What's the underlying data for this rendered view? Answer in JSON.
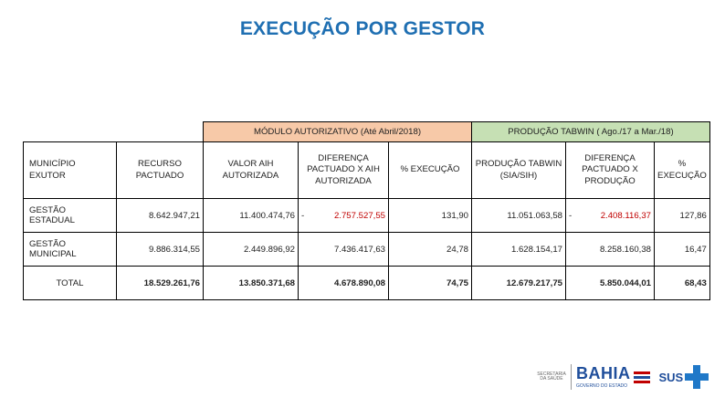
{
  "title": "EXECUÇÃO POR GESTOR",
  "group_headers": {
    "modulo": "MÓDULO AUTORIZATIVO (Até Abril/2018)",
    "producao": "PRODUÇÃO TABWIN ( Ago./17 a Mar./18)"
  },
  "columns": {
    "municipio": "MUNICÍPIO EXUTOR",
    "recurso": "RECURSO PACTUADO",
    "valor_aih": "VALOR AIH AUTORIZADA",
    "diferenca_aih": "DIFERENÇA PACTUADO X AIH AUTORIZADA",
    "execucao": "% EXECUÇÃO",
    "producao_tabwin": "PRODUÇÃO TABWIN (SIA/SIH)",
    "diferenca_producao": "DIFERENÇA PACTUADO X PRODUÇÃO",
    "execucao2": "% EXECUÇÃO"
  },
  "rows": [
    {
      "municipio": "GESTÃO ESTADUAL",
      "recurso": "8.642.947,21",
      "valor_aih": "11.400.474,76",
      "diferenca_aih_sign": "-",
      "diferenca_aih": "2.757.527,55",
      "execucao": "131,90",
      "producao_tabwin": "11.051.063,58",
      "diferenca_producao_sign": "-",
      "diferenca_producao": "2.408.116,37",
      "execucao2": "127,86"
    },
    {
      "municipio": "GESTÃO MUNICIPAL",
      "recurso": "9.886.314,55",
      "valor_aih": "2.449.896,92",
      "diferenca_aih": "7.436.417,63",
      "execucao": "24,78",
      "producao_tabwin": "1.628.154,17",
      "diferenca_producao": "8.258.160,38",
      "execucao2": "16,47"
    },
    {
      "municipio": "TOTAL",
      "recurso": "18.529.261,76",
      "valor_aih": "13.850.371,68",
      "diferenca_aih": "4.678.890,08",
      "execucao": "74,75",
      "producao_tabwin": "12.679.217,75",
      "diferenca_producao": "5.850.044,01",
      "execucao2": "68,43"
    }
  ],
  "footer": {
    "secretaria": "SECRETARIA DA SAÚDE",
    "bahia": "BAHIA",
    "governo": "GOVERNO DO ESTADO",
    "sus": "SUS"
  },
  "colors": {
    "title": "#1f6fb2",
    "modulo_header": "#f7c9a8",
    "producao_header": "#c6e0b4",
    "negative": "#c00000"
  }
}
